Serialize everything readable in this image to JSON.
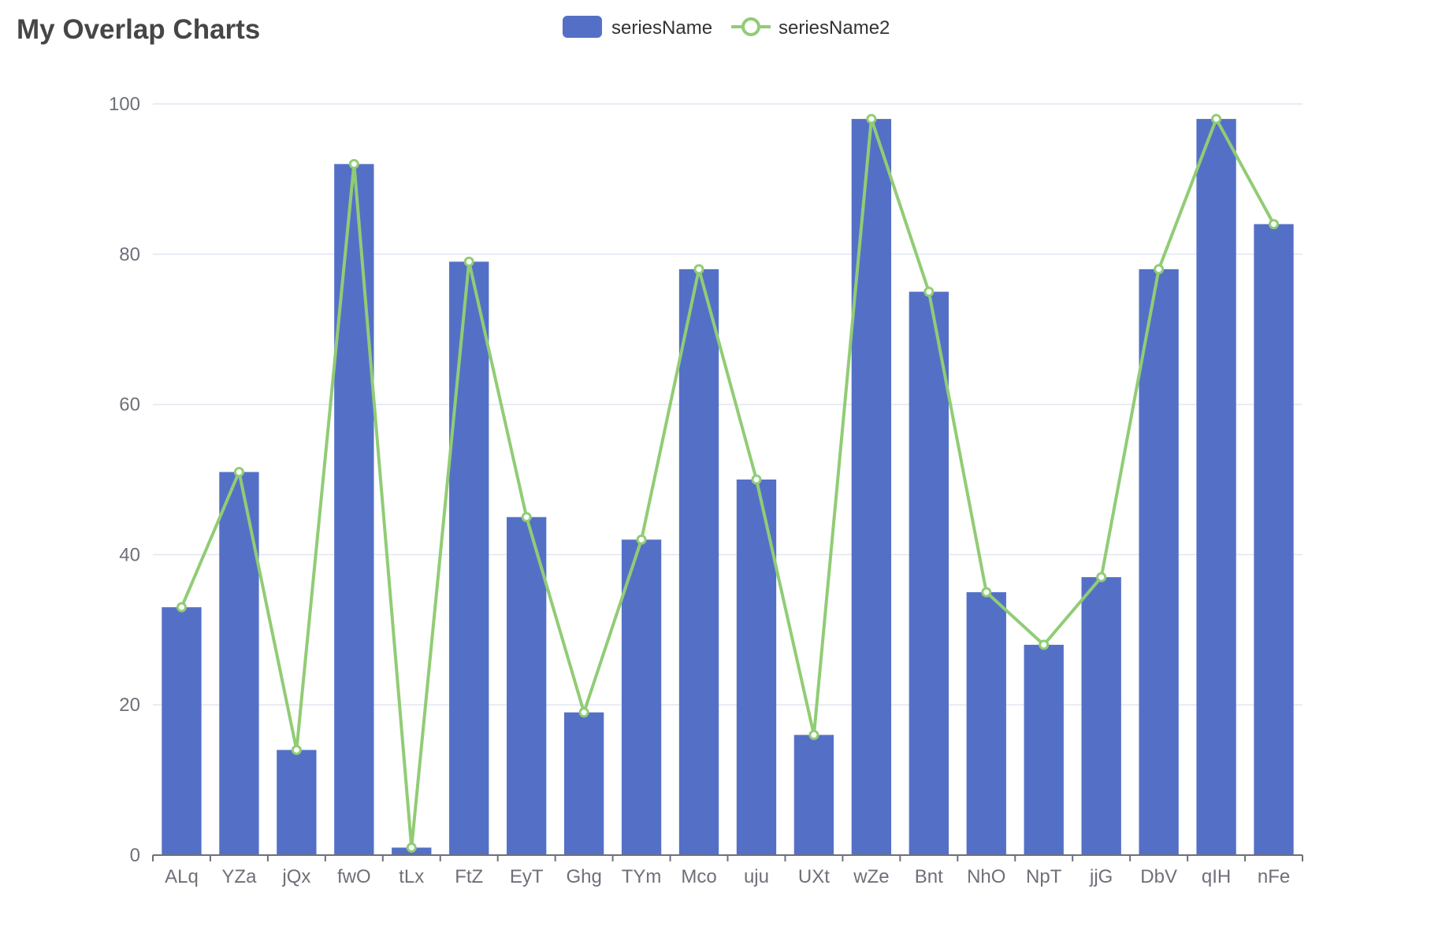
{
  "chart_data": {
    "type": "bar",
    "title": "My Overlap Charts",
    "categories": [
      "ALq",
      "YZa",
      "jQx",
      "fwO",
      "tLx",
      "FtZ",
      "EyT",
      "Ghg",
      "TYm",
      "Mco",
      "uju",
      "UXt",
      "wZe",
      "Bnt",
      "NhO",
      "NpT",
      "jjG",
      "DbV",
      "qIH",
      "nFe"
    ],
    "series": [
      {
        "name": "seriesName",
        "type": "bar",
        "color": "#5470c6",
        "values": [
          33,
          51,
          14,
          92,
          1,
          79,
          45,
          19,
          42,
          78,
          50,
          16,
          98,
          75,
          35,
          28,
          37,
          78,
          98,
          84
        ]
      },
      {
        "name": "seriesName2",
        "type": "line",
        "color": "#91cc75",
        "values": [
          33,
          51,
          14,
          92,
          1,
          79,
          45,
          19,
          42,
          78,
          50,
          16,
          98,
          75,
          35,
          28,
          37,
          78,
          98,
          84
        ]
      }
    ],
    "ylim": [
      0,
      100
    ],
    "yticks": [
      0,
      20,
      40,
      60,
      80,
      100
    ],
    "xlabel": "",
    "ylabel": "",
    "grid": true,
    "legend_position": "top-center",
    "colors": {
      "title": "#464646",
      "axis": "#6e7079",
      "gridline": "#e0e6f1",
      "legend_text": "#333333"
    }
  }
}
